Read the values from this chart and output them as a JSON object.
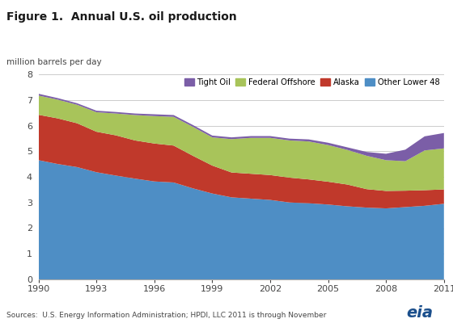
{
  "title": "Figure 1.  Annual U.S. oil production",
  "ylabel": "million barrels per day",
  "source_text": "Sources:  U.S. Energy Information Administration; HPDI, LLC 2011 is through November",
  "ylim": [
    0,
    8
  ],
  "yticks": [
    0,
    1,
    2,
    3,
    4,
    5,
    6,
    7,
    8
  ],
  "years": [
    1990,
    1991,
    1992,
    1993,
    1994,
    1995,
    1996,
    1997,
    1998,
    1999,
    2000,
    2001,
    2002,
    2003,
    2004,
    2005,
    2006,
    2007,
    2008,
    2009,
    2010,
    2011
  ],
  "other_lower_48": [
    4.65,
    4.5,
    4.38,
    4.18,
    4.05,
    3.93,
    3.82,
    3.78,
    3.55,
    3.35,
    3.2,
    3.15,
    3.1,
    3.0,
    2.97,
    2.92,
    2.85,
    2.8,
    2.77,
    2.82,
    2.87,
    2.95
  ],
  "alaska": [
    1.77,
    1.78,
    1.71,
    1.58,
    1.57,
    1.49,
    1.48,
    1.44,
    1.27,
    1.09,
    0.97,
    0.97,
    0.97,
    0.97,
    0.93,
    0.89,
    0.85,
    0.72,
    0.68,
    0.64,
    0.61,
    0.56
  ],
  "federal_offshore": [
    0.75,
    0.73,
    0.72,
    0.76,
    0.85,
    0.99,
    1.07,
    1.12,
    1.13,
    1.1,
    1.3,
    1.4,
    1.45,
    1.45,
    1.48,
    1.43,
    1.35,
    1.3,
    1.2,
    1.15,
    1.55,
    1.6
  ],
  "tight_oil": [
    0.07,
    0.06,
    0.06,
    0.06,
    0.06,
    0.06,
    0.07,
    0.07,
    0.07,
    0.07,
    0.07,
    0.07,
    0.07,
    0.07,
    0.08,
    0.09,
    0.1,
    0.15,
    0.25,
    0.45,
    0.55,
    0.6
  ],
  "colors": {
    "other_lower_48": "#4e8ec5",
    "alaska": "#c0392b",
    "federal_offshore": "#a8c45a",
    "tight_oil": "#7b5ea7"
  },
  "xtick_years": [
    1990,
    1993,
    1996,
    1999,
    2002,
    2005,
    2008,
    2011
  ],
  "background_color": "#ffffff",
  "grid_color": "#cccccc"
}
